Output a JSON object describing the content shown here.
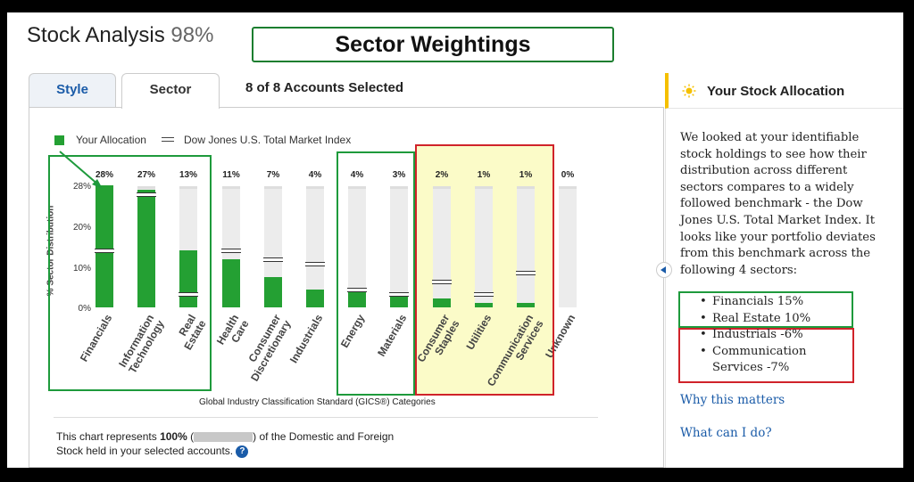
{
  "header": {
    "title": "Stock Analysis",
    "percent": "98%"
  },
  "annotation_title": "Sector Weightings",
  "tabs": {
    "style": "Style",
    "sector": "Sector"
  },
  "accounts_selected": "8 of 8 Accounts Selected",
  "legend": {
    "allocation": "Your Allocation",
    "benchmark": "Dow Jones U.S. Total Market Index"
  },
  "colors": {
    "allocation": "#24a033",
    "highlight_green": "#1e9a3c",
    "highlight_red": "#d0232a",
    "highlight_yellow": "#fafabe",
    "link": "#1a5ba8"
  },
  "chart_data": {
    "type": "bar",
    "ylabel": "% Sector Distribution",
    "xlabel": "Global Industry Classification Standard (GICS®) Categories",
    "ylim": [
      0,
      30
    ],
    "yticks": [
      "28%",
      "20%",
      "10%",
      "0%"
    ],
    "categories": [
      "Financials",
      "Information Technology",
      "Real Estate",
      "Health Care",
      "Consumer Discretionary",
      "Industrials",
      "Energy",
      "Materials",
      "Consumer Staples",
      "Utilities",
      "Communication Services",
      "Unknown"
    ],
    "value_labels": [
      "28%",
      "27%",
      "13%",
      "11%",
      "7%",
      "4%",
      "4%",
      "3%",
      "2%",
      "1%",
      "1%",
      "0%"
    ],
    "series": [
      {
        "name": "Your Allocation",
        "values": [
          28,
          27,
          13,
          11,
          7,
          4,
          4,
          3,
          2,
          1,
          1,
          0
        ]
      },
      {
        "name": "Dow Jones U.S. Total Market Index",
        "values": [
          13,
          26,
          3,
          13,
          11,
          10,
          4,
          3,
          6,
          3,
          8,
          0
        ]
      }
    ]
  },
  "footnote": {
    "prefix": "This chart represents",
    "percent": "100%",
    "paren_open": "(",
    "paren_close": ")",
    "suffix": "of the Domestic and Foreign Stock held in your selected accounts."
  },
  "sidebar": {
    "title": "Your Stock Allocation",
    "body": "We looked at your identifiable stock holdings to see how their distribution across different sectors compares to a widely followed benchmark - the Dow Jones U.S. Total Market Index. It looks like your portfolio deviates from this benchmark across the following 4 sectors:",
    "bullets": [
      "Financials 15%",
      "Real Estate 10%",
      "Industrials -6%",
      "Communication Services -7%"
    ],
    "link_why": "Why this matters",
    "link_what": "What can I do?"
  }
}
